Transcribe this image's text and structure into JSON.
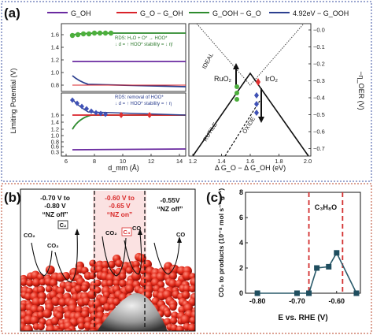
{
  "panels": {
    "a": "(a)",
    "b": "(b)",
    "c": "(c)"
  },
  "colors": {
    "oh": "#6a2aa0",
    "o_oh": "#d9232a",
    "ooh_o": "#2e8b2e",
    "v_ooh": "#2c3f8f",
    "green_marker": "#4caf3c",
    "blue_marker": "#3f51b5",
    "red_marker": "#e03030",
    "frame_blue": "#3a4fa0",
    "frame_red": "#b8442a"
  },
  "legend": [
    {
      "label": "G_OH"
    },
    {
      "label": "G_O − G_OH"
    },
    {
      "label": "G_OOH − G_O"
    },
    {
      "label": "4.92eV − G_OOH"
    }
  ],
  "panel_a": {
    "ylabel": "Limiting Potential (V)",
    "xlabel": "d_mm (Å)",
    "x_ticks": [
      "6",
      "8",
      "10",
      "12",
      "14"
    ],
    "top_y_ticks": [
      "1.6",
      "1.4",
      "1.2",
      "1.0",
      "0.8"
    ],
    "bottom_y_ticks": [
      "1.6",
      "1.4",
      "1.2",
      "1.0",
      "0.8",
      "0.6",
      "0.3"
    ],
    "top_note": [
      "RDS: H₂O + O* → HOO*",
      "↓ d = ↑ HOO* stability = ↓ η!"
    ],
    "bottom_note": [
      "RDS: removal of HOO*",
      "↓ d = ↑ HOO* stability = ↑ η"
    ]
  },
  "volcano": {
    "xlabel": "Δ G_O − Δ G_OH (eV)",
    "ylabel": "−η_OER (V)",
    "x_ticks": [
      "1.2",
      "1.4",
      "1.6",
      "1.8",
      "2.0"
    ],
    "y_ticks": [
      "−0.0",
      "−0.1",
      "−0.2",
      "−0.3",
      "−0.4",
      "−0.5",
      "−0.6",
      "−0.7"
    ],
    "labels": {
      "ideal": "IDEAL",
      "rutile": "RUTILE",
      "oxide": "OXIDE",
      "ruo2": "RuO₂",
      "iro2": "IrO₂"
    }
  },
  "panel_b": {
    "left": {
      "line1": "-0.70 V to",
      "line2": "-0.80 V",
      "line3": "“NZ off”",
      "badge": "C₂",
      "co2": "CO₂",
      "co2b": "CO₂"
    },
    "mid": {
      "line1": "-0.60 V to",
      "line2": "-0.65 V",
      "line3": "“NZ on”",
      "co2": "CO₂",
      "badge": "C₃",
      "co": "CO"
    },
    "right": {
      "line1": "-0.55V",
      "line2": "“NZ off”",
      "co": "CO"
    }
  },
  "chart_data": {
    "type": "line",
    "x": [
      -0.8,
      -0.7,
      -0.67,
      -0.65,
      -0.62,
      -0.6,
      -0.55
    ],
    "series": [
      {
        "values": [
          0.0,
          0.0,
          0.0,
          2.0,
          2.1,
          3.2,
          0.0
        ]
      }
    ],
    "xlabel": "E vs. RHE (V)",
    "ylabel": "CO₂ to products (10⁻⁸ mol s⁻¹ g⁻¹)",
    "x_ticks": [
      "-0.80",
      "-0.70",
      "-0.60"
    ],
    "y_ticks": [
      "0",
      "2",
      "4",
      "6",
      "8"
    ],
    "xlim": [
      -0.83,
      -0.54
    ],
    "ylim": [
      0,
      8
    ],
    "vlines": [
      -0.67,
      -0.585
    ],
    "annotation": "C₃H₈O"
  }
}
